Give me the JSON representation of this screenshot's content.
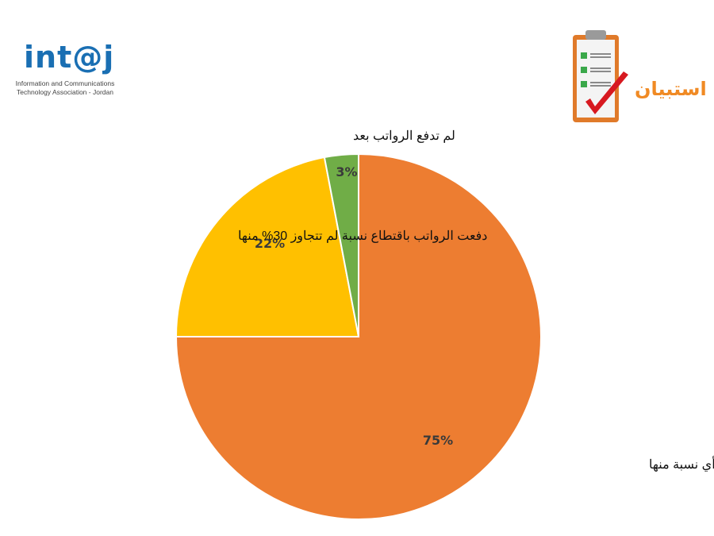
{
  "logo": {
    "brand": "int@j",
    "subtitle_line1": "Information and Communications",
    "subtitle_line2": "Technology Association - Jordan"
  },
  "survey": {
    "label": "استبيان"
  },
  "colors": {
    "orange": "#ED7D31",
    "yellow": "#FFC000",
    "green": "#70AD47",
    "brand_blue": "#1a6fb3",
    "accent_orange": "#f08a24"
  },
  "chart_data": {
    "type": "pie",
    "title": "",
    "slices": [
      {
        "label": "دفعت الرواتب بدون اقتطاع أي نسبة منها",
        "value": 75,
        "value_label": "75%",
        "color": "#ED7D31"
      },
      {
        "label": "دفعت الرواتب باقتطاع نسبة  لم تتجاوز 30% منها",
        "value": 22,
        "value_label": "22%",
        "color": "#FFC000"
      },
      {
        "label": "لم تدفع الرواتب بعد",
        "value": 3,
        "value_label": "3%",
        "color": "#70AD47"
      }
    ]
  }
}
